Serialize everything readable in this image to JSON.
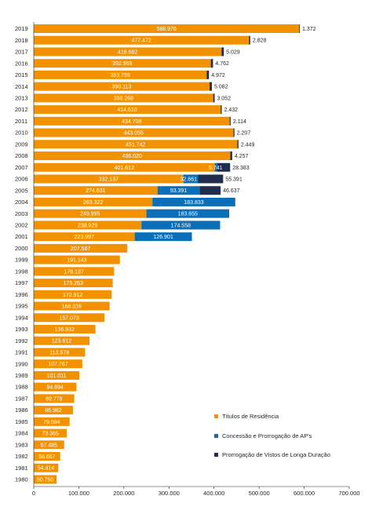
{
  "chart_data": {
    "type": "bar",
    "orientation": "horizontal",
    "stacked": true,
    "title": "",
    "xlabel": "",
    "ylabel": "",
    "xlim": [
      0,
      700000
    ],
    "x_ticks": [
      "0",
      "100.000",
      "200.000",
      "300.000",
      "400.000",
      "500.000",
      "600.000",
      "700.000"
    ],
    "x_tick_values": [
      0,
      100000,
      200000,
      300000,
      400000,
      500000,
      600000,
      700000
    ],
    "grid": false,
    "legend_position": "bottom-right",
    "categories": [
      "2019",
      "2018",
      "2017",
      "2016",
      "2015",
      "2014",
      "2013",
      "2012",
      "2011",
      "2010",
      "2009",
      "2008",
      "2007",
      "2006",
      "2005",
      "2004",
      "2003",
      "2002",
      "2001",
      "2000",
      "1999",
      "1998",
      "1997",
      "1996",
      "1995",
      "1994",
      "1993",
      "1992",
      "1991",
      "1990",
      "1989",
      "1988",
      "1987",
      "1986",
      "1985",
      "1984",
      "1983",
      "1982",
      "1981",
      "1980"
    ],
    "series": [
      {
        "name": "Títulos de Residência",
        "color": "#f39200",
        "label_color": "#ffffff",
        "values": [
          588976,
          477472,
          416682,
          392969,
          383759,
          390113,
          398268,
          414610,
          434708,
          443055,
          451742,
          436020,
          401612,
          332137,
          274631,
          263322,
          249995,
          238929,
          223997,
          207587,
          191143,
          178137,
          175263,
          172912,
          168316,
          157073,
          136932,
          123612,
          113978,
          107767,
          101011,
          94694,
          89778,
          86982,
          79594,
          73365,
          67485,
          58667,
          54414,
          50750
        ],
        "labels": [
          "588.976",
          "477.472",
          "416.682",
          "392.969",
          "383.759",
          "390.113",
          "398.268",
          "414.610",
          "434.708",
          "443.055",
          "451.742",
          "436.020",
          "401.612",
          "332.137",
          "274.631",
          "263.322",
          "249.995",
          "238.929",
          "223.997",
          "207.587",
          "191.143",
          "178.137",
          "175.263",
          "172.912",
          "168.316",
          "157.073",
          "136.932",
          "123.612",
          "113.978",
          "107.767",
          "101.011",
          "94.694",
          "89.778",
          "86.982",
          "79.594",
          "73.365",
          "67.485",
          "58.667",
          "54.414",
          "50.750"
        ]
      },
      {
        "name": "Concessão e Prorrogação de AP's",
        "color": "#0b6fb8",
        "label_color": "#ffffff",
        "values": [
          null,
          null,
          null,
          null,
          null,
          null,
          null,
          null,
          null,
          null,
          null,
          null,
          5741,
          32661,
          93391,
          183833,
          183655,
          174558,
          126901,
          null,
          null,
          null,
          null,
          null,
          null,
          null,
          null,
          null,
          null,
          null,
          null,
          null,
          null,
          null,
          null,
          null,
          null,
          null,
          null,
          null
        ],
        "labels": [
          null,
          null,
          null,
          null,
          null,
          null,
          null,
          null,
          null,
          null,
          null,
          null,
          "5.741",
          "32.661",
          "93.391",
          "183.833",
          "183.655",
          "174.558",
          "126.901",
          null,
          null,
          null,
          null,
          null,
          null,
          null,
          null,
          null,
          null,
          null,
          null,
          null,
          null,
          null,
          null,
          null,
          null,
          null,
          null,
          null
        ]
      },
      {
        "name": "Prorrogação de Vistos de Longa Duração",
        "color": "#1f2d4e",
        "label_color": "#231f20",
        "values": [
          1372,
          2828,
          5029,
          4762,
          4972,
          5082,
          3052,
          2432,
          2114,
          2207,
          2449,
          4257,
          28383,
          55391,
          46637,
          null,
          null,
          null,
          null,
          null,
          null,
          null,
          null,
          null,
          null,
          null,
          null,
          null,
          null,
          null,
          null,
          null,
          null,
          null,
          null,
          null,
          null,
          null,
          null,
          null
        ],
        "labels": [
          "1.372",
          "2.828",
          "5.029",
          "4.762",
          "4.972",
          "5.082",
          "3.052",
          "2.432",
          "2.114",
          "2.207",
          "2.449",
          "4.257",
          "28.383",
          "55.391",
          "46.637",
          null,
          null,
          null,
          null,
          null,
          null,
          null,
          null,
          null,
          null,
          null,
          null,
          null,
          null,
          null,
          null,
          null,
          null,
          null,
          null,
          null,
          null,
          null,
          null,
          null
        ]
      }
    ]
  }
}
